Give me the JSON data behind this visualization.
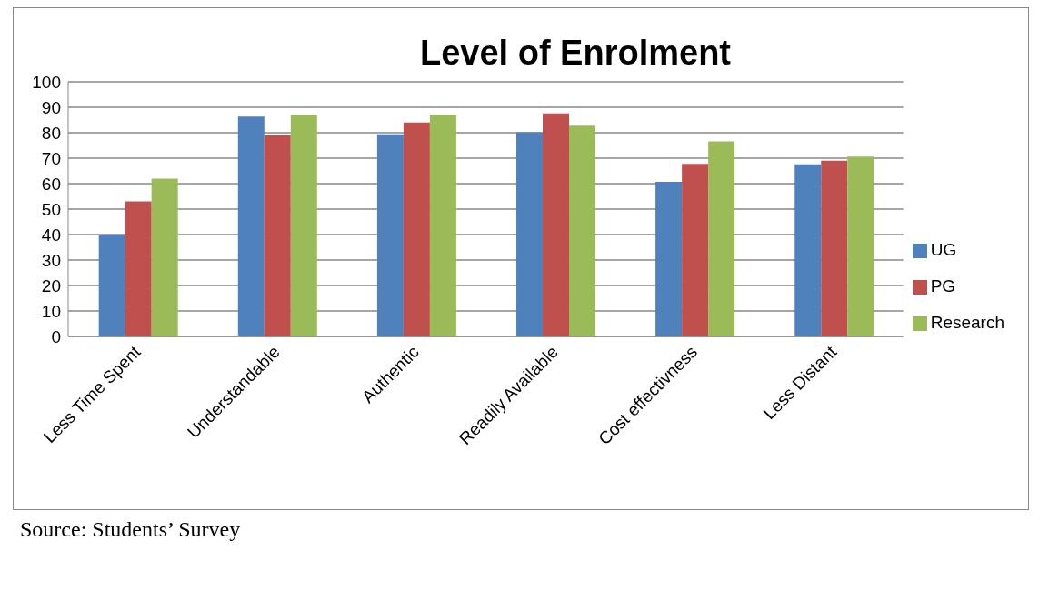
{
  "chart_data": {
    "type": "bar",
    "title": "Level of Enrolment",
    "categories": [
      "Less Time Spent",
      "Understandable",
      "Authentic",
      "Readily Available",
      "Cost effectivness",
      "Less Distant"
    ],
    "series": [
      {
        "name": "UG",
        "color": "#4f81bd",
        "values": [
          40,
          86.3,
          79.4,
          80.2,
          60.7,
          67.6
        ]
      },
      {
        "name": "PG",
        "color": "#c0504d",
        "values": [
          53,
          79,
          84,
          87.6,
          67.8,
          69
        ]
      },
      {
        "name": "Research",
        "color": "#9bbb59",
        "values": [
          62,
          87,
          87,
          82.8,
          76.6,
          70.6
        ]
      }
    ],
    "ylim": [
      0,
      100
    ],
    "yticks": [
      0,
      10,
      20,
      30,
      40,
      50,
      60,
      70,
      80,
      90,
      100
    ],
    "grid": "y",
    "legend": "right",
    "annotations": [
      "Source: Students’ Survey"
    ]
  }
}
